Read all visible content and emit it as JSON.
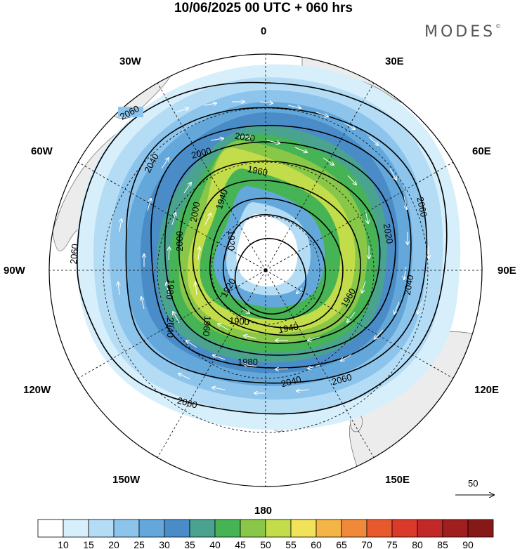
{
  "title": "10/06/2025  00 UTC  + 060 hrs",
  "brand": "MODES",
  "brand_mark": "©",
  "longitude_labels": {
    "north": "0",
    "ne": "30E",
    "ene": "60E",
    "east": "90E",
    "ese": "120E",
    "se": "150E",
    "south": "180",
    "sw": "150W",
    "wsw": "120W",
    "west": "90W",
    "wnw": "60W",
    "nw": "30W"
  },
  "contour_labels": [
    "2060",
    "2040",
    "2020",
    "2000",
    "1980",
    "1960",
    "1940",
    "1920",
    "1900"
  ],
  "reference_vector": {
    "label": "50"
  },
  "colorbar": {
    "ticks": [
      "10",
      "15",
      "20",
      "25",
      "30",
      "35",
      "40",
      "45",
      "50",
      "55",
      "60",
      "65",
      "70",
      "75",
      "80",
      "85",
      "90"
    ],
    "colors": [
      "#ffffff",
      "#d6effb",
      "#b4ddf5",
      "#8cc4eb",
      "#64a8db",
      "#4a8cc8",
      "#4aa38f",
      "#46b454",
      "#88c748",
      "#c2dc4a",
      "#f2e25a",
      "#f4b446",
      "#f08a3a",
      "#e85a2e",
      "#d93a2a",
      "#c22828",
      "#a01e1e",
      "#861818"
    ]
  }
}
